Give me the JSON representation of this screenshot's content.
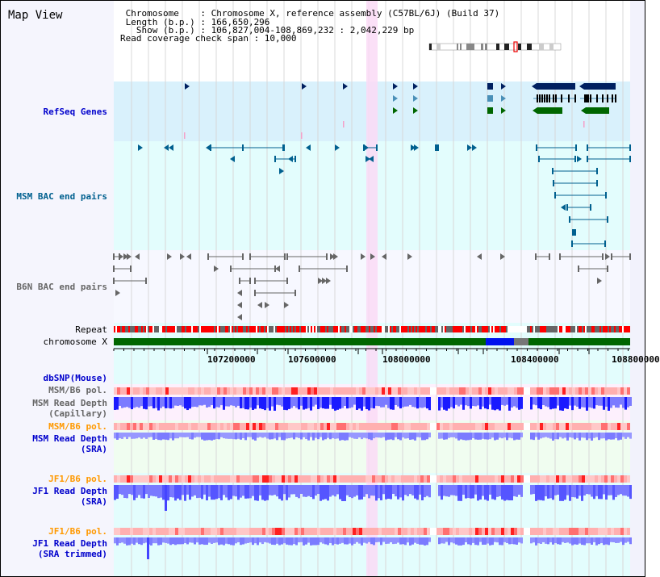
{
  "page": {
    "title": "Map View"
  },
  "header": {
    "line1": " Chromosome    : Chromosome X, reference assembly (C57BL/6J) (Build 37)",
    "line2": " Length (b.p.) : 166,650,296",
    "line3": "   Show (b.p.) : 106,827,004-108,869,232 : 2,042,229 bp",
    "line4": "Read coverage check span : 10,000"
  },
  "tracks": {
    "refseq": {
      "label": "RefSeq Genes",
      "color": "#0000cc"
    },
    "msm_bac": {
      "label": "MSM BAC end pairs",
      "color": "#00608f"
    },
    "b6n_bac": {
      "label": "B6N BAC end pairs",
      "color": "#666666"
    },
    "repeat": {
      "label": "Repeat"
    },
    "chromosome": {
      "label": "chromosome X"
    },
    "dbsnp": {
      "label": "dbSNP(Mouse)",
      "color": "#0000cc"
    },
    "msm_b6_pol_1": {
      "label": "MSM/B6 pol.",
      "color": "#666666"
    },
    "msm_depth_cap": {
      "label": "MSM Read Depth\n(Capillary)",
      "color": "#666666"
    },
    "msm_b6_pol_2": {
      "label": "MSM/B6 pol.",
      "color": "#ff9900"
    },
    "msm_depth_sra": {
      "label": "MSM Read Depth\n(SRA)",
      "color": "#0000cc"
    },
    "jf1_b6_pol_1": {
      "label": "JF1/B6 pol.",
      "color": "#ff9900"
    },
    "jf1_depth_sra": {
      "label": "JF1 Read Depth\n(SRA)",
      "color": "#0000cc"
    },
    "jf1_b6_pol_2": {
      "label": "JF1/B6 pol.",
      "color": "#ff9900"
    },
    "jf1_depth_trim": {
      "label": "JF1 Read Depth\n(SRA trimmed)",
      "color": "#0000cc"
    }
  },
  "axis": {
    "range": [
      106827004,
      108869232
    ],
    "ticks": [
      "107200000",
      "107600000",
      "108000000",
      "108400000",
      "108800000"
    ]
  },
  "colors": {
    "refseq_bg": "#d9f1fc",
    "msm_bg": "#e3fdfd",
    "b6n_bg": "#f7f8ff",
    "highlight": "#fadaf6",
    "chrom_green": "#006600",
    "repeat_red": "#ff0000",
    "repeat_gray": "#666666",
    "depth_blue": "#1a1aff"
  }
}
